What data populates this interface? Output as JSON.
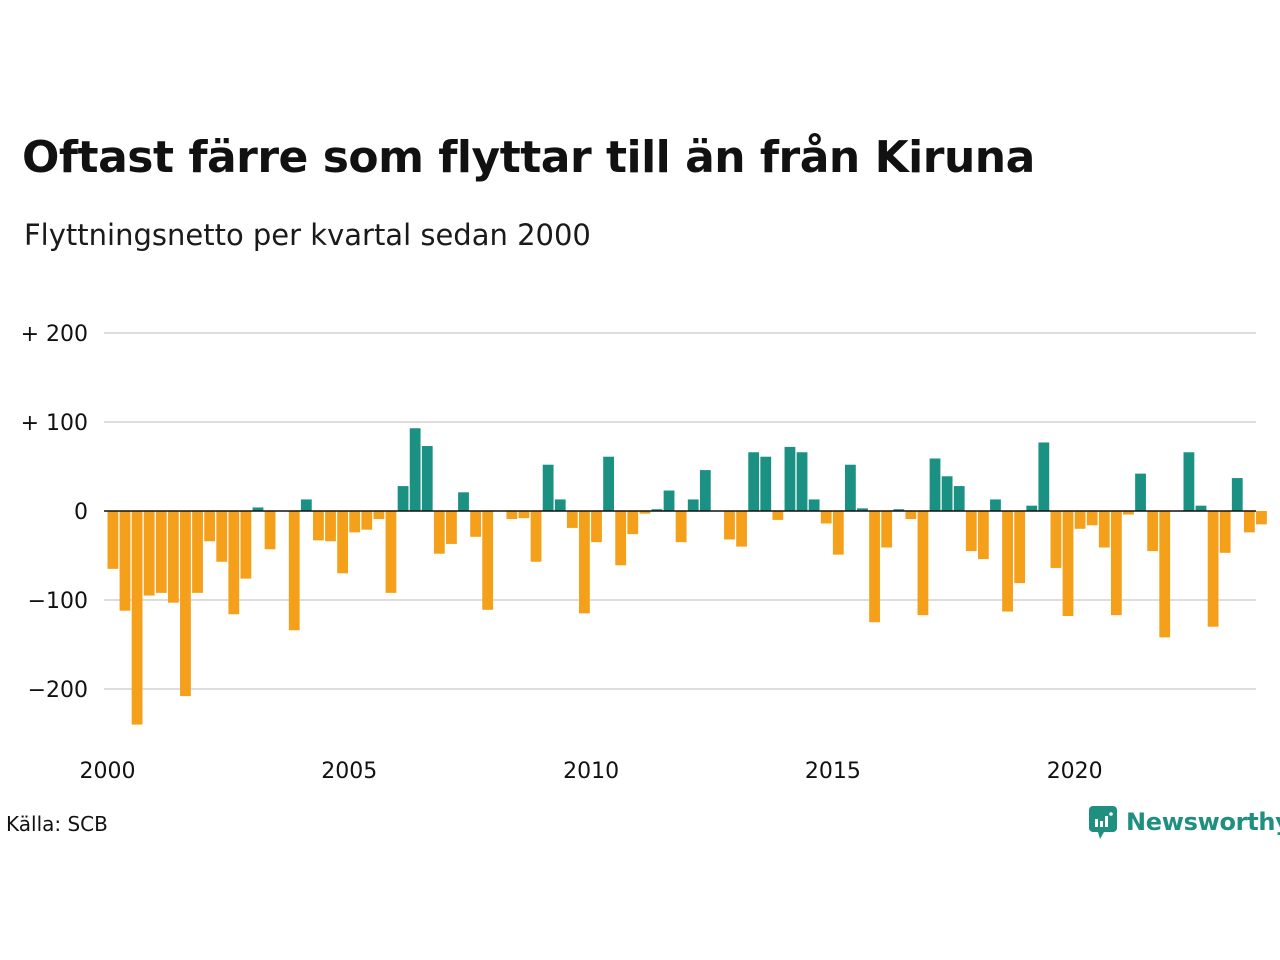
{
  "title": "Oftast färre som flyttar till än från Kiruna",
  "subtitle": "Flyttningsnetto per kvartal sedan 2000",
  "source": "Källa: SCB",
  "brand": {
    "name": "Newsworthy"
  },
  "colors": {
    "positive": "#1a9183",
    "negative": "#f5a01a",
    "grid": "#dddddd",
    "zero": "#111111",
    "brand": "#1f8f80"
  },
  "chart_data": {
    "type": "bar",
    "title": "Oftast färre som flyttar till än från Kiruna",
    "subtitle": "Flyttningsnetto per kvartal sedan 2000",
    "xlabel": "",
    "ylabel": "",
    "ylim": [
      -250,
      220
    ],
    "grid": true,
    "legend": "none",
    "y_ticks": [
      {
        "value": 200,
        "label": "+ 200"
      },
      {
        "value": 100,
        "label": "+ 100"
      },
      {
        "value": 0,
        "label": "0"
      },
      {
        "value": -100,
        "label": "−100"
      },
      {
        "value": -200,
        "label": "−200"
      }
    ],
    "x_ticks": [
      {
        "value": 2000,
        "label": "2000"
      },
      {
        "value": 2005,
        "label": "2005"
      },
      {
        "value": 2010,
        "label": "2010"
      },
      {
        "value": 2015,
        "label": "2015"
      },
      {
        "value": 2020,
        "label": "2020"
      }
    ],
    "start_year": 2000,
    "values": [
      -65,
      -112,
      -240,
      -95,
      -92,
      -103,
      -208,
      -92,
      -34,
      -57,
      -116,
      -76,
      4,
      -43,
      0,
      -134,
      13,
      -33,
      -34,
      -70,
      -24,
      -21,
      -9,
      -92,
      28,
      93,
      73,
      -48,
      -37,
      21,
      -29,
      -111,
      0,
      -9,
      -8,
      -57,
      52,
      13,
      -19,
      -115,
      -35,
      61,
      -61,
      -26,
      -3,
      2,
      23,
      -35,
      13,
      46,
      0,
      -32,
      -40,
      66,
      61,
      -10,
      72,
      66,
      13,
      -14,
      -49,
      52,
      3,
      -125,
      -41,
      2,
      -9,
      -117,
      59,
      39,
      28,
      -45,
      -54,
      13,
      -113,
      -81,
      6,
      77,
      -64,
      -118,
      -20,
      -16,
      -41,
      -117,
      -4,
      42,
      -45,
      -142,
      0,
      66,
      6,
      -130,
      -47,
      37,
      -24,
      -15
    ]
  }
}
